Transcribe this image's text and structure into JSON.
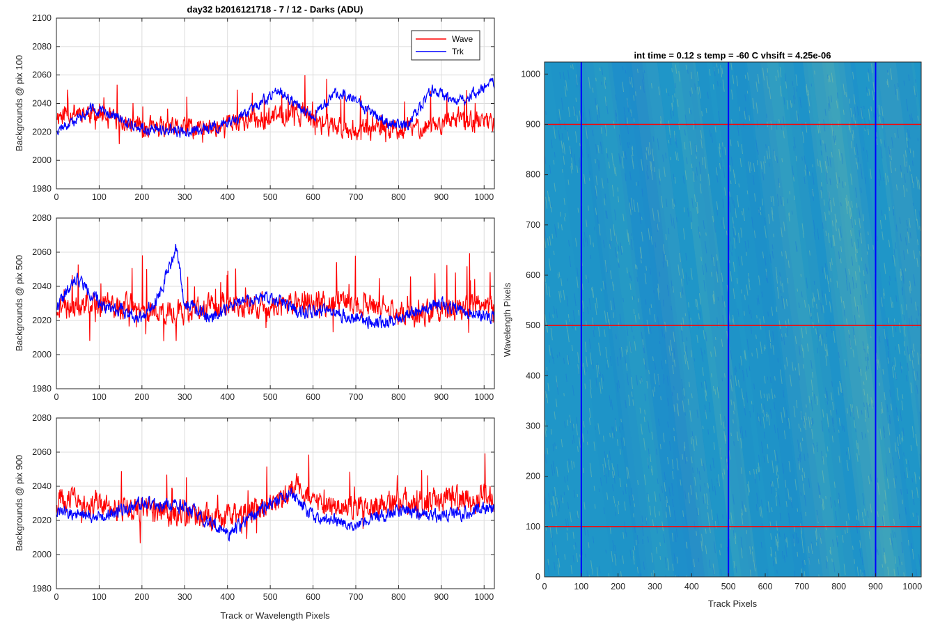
{
  "chart_data": [
    {
      "type": "line",
      "title": "day32 b2016121718 - 7 / 12 - Darks (ADU)",
      "xlabel": "",
      "ylabel": "Backgrounds @ pix 100",
      "xlim": [
        0,
        1024
      ],
      "ylim": [
        1980,
        2100
      ],
      "xticks": [
        0,
        100,
        200,
        300,
        400,
        500,
        600,
        700,
        800,
        900,
        1000
      ],
      "yticks": [
        1980,
        2000,
        2020,
        2040,
        2060,
        2080,
        2100
      ],
      "grid": true,
      "legend": {
        "placement": "top-right",
        "entries": [
          "Wave",
          "Trk"
        ]
      },
      "series": [
        {
          "name": "Wave",
          "color": "#ff0000",
          "base": [
            [
              0,
              2032
            ],
            [
              60,
              2035
            ],
            [
              150,
              2026
            ],
            [
              250,
              2022
            ],
            [
              350,
              2022
            ],
            [
              430,
              2028
            ],
            [
              500,
              2030
            ],
            [
              560,
              2034
            ],
            [
              620,
              2026
            ],
            [
              700,
              2022
            ],
            [
              800,
              2022
            ],
            [
              900,
              2026
            ],
            [
              1024,
              2028
            ]
          ],
          "noise": 11,
          "spike": 22,
          "seed": 11
        },
        {
          "name": "Trk",
          "color": "#0000ff",
          "base": [
            [
              0,
              2022
            ],
            [
              30,
              2025
            ],
            [
              80,
              2036
            ],
            [
              130,
              2032
            ],
            [
              200,
              2022
            ],
            [
              300,
              2020
            ],
            [
              380,
              2024
            ],
            [
              450,
              2034
            ],
            [
              520,
              2050
            ],
            [
              560,
              2040
            ],
            [
              600,
              2030
            ],
            [
              650,
              2048
            ],
            [
              700,
              2042
            ],
            [
              760,
              2028
            ],
            [
              820,
              2024
            ],
            [
              880,
              2050
            ],
            [
              930,
              2040
            ],
            [
              980,
              2048
            ],
            [
              1024,
              2055
            ]
          ],
          "noise": 6,
          "spike": 0,
          "seed": 12
        }
      ]
    },
    {
      "type": "line",
      "title": "",
      "xlabel": "",
      "ylabel": "Backgrounds @ pix 500",
      "xlim": [
        0,
        1024
      ],
      "ylim": [
        1980,
        2080
      ],
      "xticks": [
        0,
        100,
        200,
        300,
        400,
        500,
        600,
        700,
        800,
        900,
        1000
      ],
      "yticks": [
        1980,
        2000,
        2020,
        2040,
        2060,
        2080
      ],
      "grid": true,
      "series": [
        {
          "name": "Wave",
          "color": "#ff0000",
          "base": [
            [
              0,
              2028
            ],
            [
              100,
              2030
            ],
            [
              200,
              2026
            ],
            [
              300,
              2024
            ],
            [
              400,
              2030
            ],
            [
              500,
              2028
            ],
            [
              600,
              2030
            ],
            [
              700,
              2030
            ],
            [
              800,
              2024
            ],
            [
              900,
              2026
            ],
            [
              1024,
              2028
            ]
          ],
          "noise": 11,
          "spike": 22,
          "seed": 21
        },
        {
          "name": "Trk",
          "color": "#0000ff",
          "base": [
            [
              0,
              2028
            ],
            [
              50,
              2045
            ],
            [
              100,
              2030
            ],
            [
              200,
              2022
            ],
            [
              240,
              2035
            ],
            [
              280,
              2062
            ],
            [
              300,
              2030
            ],
            [
              360,
              2022
            ],
            [
              420,
              2030
            ],
            [
              500,
              2034
            ],
            [
              560,
              2026
            ],
            [
              650,
              2024
            ],
            [
              760,
              2018
            ],
            [
              800,
              2022
            ],
            [
              900,
              2030
            ],
            [
              950,
              2025
            ],
            [
              1024,
              2022
            ]
          ],
          "noise": 6,
          "spike": 0,
          "seed": 22
        }
      ]
    },
    {
      "type": "line",
      "title": "",
      "xlabel": "Track or Wavelength Pixels",
      "ylabel": "Backgrounds @ pix 900",
      "xlim": [
        0,
        1024
      ],
      "ylim": [
        1980,
        2080
      ],
      "xticks": [
        0,
        100,
        200,
        300,
        400,
        500,
        600,
        700,
        800,
        900,
        1000
      ],
      "yticks": [
        1980,
        2000,
        2020,
        2040,
        2060,
        2080
      ],
      "grid": true,
      "series": [
        {
          "name": "Wave",
          "color": "#ff0000",
          "base": [
            [
              0,
              2032
            ],
            [
              100,
              2030
            ],
            [
              200,
              2026
            ],
            [
              300,
              2024
            ],
            [
              400,
              2022
            ],
            [
              480,
              2028
            ],
            [
              560,
              2040
            ],
            [
              600,
              2030
            ],
            [
              700,
              2028
            ],
            [
              800,
              2030
            ],
            [
              900,
              2032
            ],
            [
              1024,
              2032
            ]
          ],
          "noise": 11,
          "spike": 22,
          "seed": 31
        },
        {
          "name": "Trk",
          "color": "#0000ff",
          "base": [
            [
              0,
              2025
            ],
            [
              100,
              2022
            ],
            [
              200,
              2030
            ],
            [
              300,
              2028
            ],
            [
              400,
              2012
            ],
            [
              500,
              2030
            ],
            [
              550,
              2036
            ],
            [
              600,
              2022
            ],
            [
              700,
              2018
            ],
            [
              800,
              2026
            ],
            [
              900,
              2022
            ],
            [
              1024,
              2028
            ]
          ],
          "noise": 6,
          "spike": 0,
          "seed": 32
        }
      ]
    },
    {
      "type": "heatmap",
      "title": "int time = 0.12 s    temp = -60 C    vhsift = 4.25e-06",
      "xlabel": "Track Pixels",
      "ylabel": "Wavelength Pixels",
      "xlim": [
        0,
        1024
      ],
      "ylim": [
        0,
        1024
      ],
      "xticks": [
        0,
        100,
        200,
        300,
        400,
        500,
        600,
        700,
        800,
        900,
        1000
      ],
      "yticks": [
        0,
        100,
        200,
        300,
        400,
        500,
        600,
        700,
        800,
        900,
        1000
      ],
      "colors": {
        "base": "#1f96c8",
        "low": "#1b79d4",
        "high": "#8ec8a0"
      },
      "vertical_lines": {
        "x": [
          100,
          500,
          900
        ],
        "color": "#0000ff"
      },
      "horizontal_lines": {
        "y": [
          100,
          500,
          900
        ],
        "color": "#ff0000"
      }
    }
  ]
}
